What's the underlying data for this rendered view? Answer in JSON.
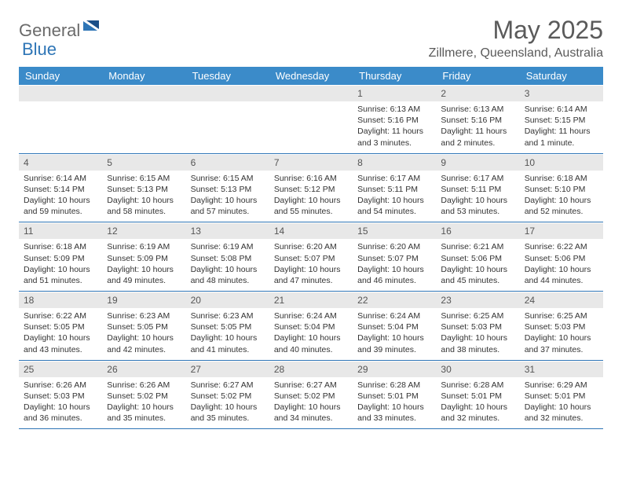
{
  "logo": {
    "part1": "General",
    "part2": "Blue"
  },
  "title": "May 2025",
  "location": "Zillmere, Queensland, Australia",
  "colors": {
    "header_bg": "#3b8bc9",
    "header_text": "#ffffff",
    "daynum_bg": "#e8e8e8",
    "cell_border": "#2e75b6",
    "body_text": "#333333",
    "title_text": "#5a5a5a",
    "logo_gray": "#6a6a6a",
    "logo_blue": "#2e75b6"
  },
  "day_names": [
    "Sunday",
    "Monday",
    "Tuesday",
    "Wednesday",
    "Thursday",
    "Friday",
    "Saturday"
  ],
  "weeks": [
    [
      {
        "num": "",
        "sunrise": "",
        "sunset": "",
        "daylight": ""
      },
      {
        "num": "",
        "sunrise": "",
        "sunset": "",
        "daylight": ""
      },
      {
        "num": "",
        "sunrise": "",
        "sunset": "",
        "daylight": ""
      },
      {
        "num": "",
        "sunrise": "",
        "sunset": "",
        "daylight": ""
      },
      {
        "num": "1",
        "sunrise": "Sunrise: 6:13 AM",
        "sunset": "Sunset: 5:16 PM",
        "daylight": "Daylight: 11 hours and 3 minutes."
      },
      {
        "num": "2",
        "sunrise": "Sunrise: 6:13 AM",
        "sunset": "Sunset: 5:16 PM",
        "daylight": "Daylight: 11 hours and 2 minutes."
      },
      {
        "num": "3",
        "sunrise": "Sunrise: 6:14 AM",
        "sunset": "Sunset: 5:15 PM",
        "daylight": "Daylight: 11 hours and 1 minute."
      }
    ],
    [
      {
        "num": "4",
        "sunrise": "Sunrise: 6:14 AM",
        "sunset": "Sunset: 5:14 PM",
        "daylight": "Daylight: 10 hours and 59 minutes."
      },
      {
        "num": "5",
        "sunrise": "Sunrise: 6:15 AM",
        "sunset": "Sunset: 5:13 PM",
        "daylight": "Daylight: 10 hours and 58 minutes."
      },
      {
        "num": "6",
        "sunrise": "Sunrise: 6:15 AM",
        "sunset": "Sunset: 5:13 PM",
        "daylight": "Daylight: 10 hours and 57 minutes."
      },
      {
        "num": "7",
        "sunrise": "Sunrise: 6:16 AM",
        "sunset": "Sunset: 5:12 PM",
        "daylight": "Daylight: 10 hours and 55 minutes."
      },
      {
        "num": "8",
        "sunrise": "Sunrise: 6:17 AM",
        "sunset": "Sunset: 5:11 PM",
        "daylight": "Daylight: 10 hours and 54 minutes."
      },
      {
        "num": "9",
        "sunrise": "Sunrise: 6:17 AM",
        "sunset": "Sunset: 5:11 PM",
        "daylight": "Daylight: 10 hours and 53 minutes."
      },
      {
        "num": "10",
        "sunrise": "Sunrise: 6:18 AM",
        "sunset": "Sunset: 5:10 PM",
        "daylight": "Daylight: 10 hours and 52 minutes."
      }
    ],
    [
      {
        "num": "11",
        "sunrise": "Sunrise: 6:18 AM",
        "sunset": "Sunset: 5:09 PM",
        "daylight": "Daylight: 10 hours and 51 minutes."
      },
      {
        "num": "12",
        "sunrise": "Sunrise: 6:19 AM",
        "sunset": "Sunset: 5:09 PM",
        "daylight": "Daylight: 10 hours and 49 minutes."
      },
      {
        "num": "13",
        "sunrise": "Sunrise: 6:19 AM",
        "sunset": "Sunset: 5:08 PM",
        "daylight": "Daylight: 10 hours and 48 minutes."
      },
      {
        "num": "14",
        "sunrise": "Sunrise: 6:20 AM",
        "sunset": "Sunset: 5:07 PM",
        "daylight": "Daylight: 10 hours and 47 minutes."
      },
      {
        "num": "15",
        "sunrise": "Sunrise: 6:20 AM",
        "sunset": "Sunset: 5:07 PM",
        "daylight": "Daylight: 10 hours and 46 minutes."
      },
      {
        "num": "16",
        "sunrise": "Sunrise: 6:21 AM",
        "sunset": "Sunset: 5:06 PM",
        "daylight": "Daylight: 10 hours and 45 minutes."
      },
      {
        "num": "17",
        "sunrise": "Sunrise: 6:22 AM",
        "sunset": "Sunset: 5:06 PM",
        "daylight": "Daylight: 10 hours and 44 minutes."
      }
    ],
    [
      {
        "num": "18",
        "sunrise": "Sunrise: 6:22 AM",
        "sunset": "Sunset: 5:05 PM",
        "daylight": "Daylight: 10 hours and 43 minutes."
      },
      {
        "num": "19",
        "sunrise": "Sunrise: 6:23 AM",
        "sunset": "Sunset: 5:05 PM",
        "daylight": "Daylight: 10 hours and 42 minutes."
      },
      {
        "num": "20",
        "sunrise": "Sunrise: 6:23 AM",
        "sunset": "Sunset: 5:05 PM",
        "daylight": "Daylight: 10 hours and 41 minutes."
      },
      {
        "num": "21",
        "sunrise": "Sunrise: 6:24 AM",
        "sunset": "Sunset: 5:04 PM",
        "daylight": "Daylight: 10 hours and 40 minutes."
      },
      {
        "num": "22",
        "sunrise": "Sunrise: 6:24 AM",
        "sunset": "Sunset: 5:04 PM",
        "daylight": "Daylight: 10 hours and 39 minutes."
      },
      {
        "num": "23",
        "sunrise": "Sunrise: 6:25 AM",
        "sunset": "Sunset: 5:03 PM",
        "daylight": "Daylight: 10 hours and 38 minutes."
      },
      {
        "num": "24",
        "sunrise": "Sunrise: 6:25 AM",
        "sunset": "Sunset: 5:03 PM",
        "daylight": "Daylight: 10 hours and 37 minutes."
      }
    ],
    [
      {
        "num": "25",
        "sunrise": "Sunrise: 6:26 AM",
        "sunset": "Sunset: 5:03 PM",
        "daylight": "Daylight: 10 hours and 36 minutes."
      },
      {
        "num": "26",
        "sunrise": "Sunrise: 6:26 AM",
        "sunset": "Sunset: 5:02 PM",
        "daylight": "Daylight: 10 hours and 35 minutes."
      },
      {
        "num": "27",
        "sunrise": "Sunrise: 6:27 AM",
        "sunset": "Sunset: 5:02 PM",
        "daylight": "Daylight: 10 hours and 35 minutes."
      },
      {
        "num": "28",
        "sunrise": "Sunrise: 6:27 AM",
        "sunset": "Sunset: 5:02 PM",
        "daylight": "Daylight: 10 hours and 34 minutes."
      },
      {
        "num": "29",
        "sunrise": "Sunrise: 6:28 AM",
        "sunset": "Sunset: 5:01 PM",
        "daylight": "Daylight: 10 hours and 33 minutes."
      },
      {
        "num": "30",
        "sunrise": "Sunrise: 6:28 AM",
        "sunset": "Sunset: 5:01 PM",
        "daylight": "Daylight: 10 hours and 32 minutes."
      },
      {
        "num": "31",
        "sunrise": "Sunrise: 6:29 AM",
        "sunset": "Sunset: 5:01 PM",
        "daylight": "Daylight: 10 hours and 32 minutes."
      }
    ]
  ]
}
